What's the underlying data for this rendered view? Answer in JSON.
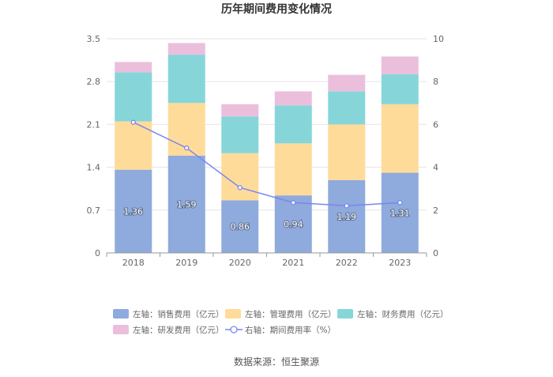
{
  "chart_data": {
    "type": "bar",
    "title": "历年期间费用变化情况",
    "categories": [
      "2018",
      "2019",
      "2020",
      "2021",
      "2022",
      "2023"
    ],
    "stacked": true,
    "left_axis": {
      "ylim": [
        0,
        3.5
      ],
      "ticks": [
        "0",
        "0.7",
        "1.4",
        "2.1",
        "2.8",
        "3.5"
      ]
    },
    "right_axis": {
      "ylim": [
        0,
        10
      ],
      "ticks": [
        "0",
        "2",
        "4",
        "6",
        "8",
        "10"
      ]
    },
    "series": [
      {
        "name": "左轴：销售费用（亿元）",
        "type": "bar",
        "axis": "left",
        "color": "#8faadc",
        "values": [
          1.36,
          1.59,
          0.86,
          0.94,
          1.19,
          1.31
        ],
        "labels": [
          "1.36",
          "1.59",
          "0.86",
          "0.94",
          "1.19",
          "1.31"
        ]
      },
      {
        "name": "左轴：管理费用（亿元）",
        "type": "bar",
        "axis": "left",
        "color": "#ffdb9a",
        "values": [
          0.79,
          0.86,
          0.77,
          0.85,
          0.91,
          1.12
        ]
      },
      {
        "name": "左轴：财务费用（亿元）",
        "type": "bar",
        "axis": "left",
        "color": "#86d6d9",
        "values": [
          0.8,
          0.79,
          0.6,
          0.62,
          0.54,
          0.49
        ]
      },
      {
        "name": "左轴：研发费用（亿元）",
        "type": "bar",
        "axis": "left",
        "color": "#ebbfdc",
        "values": [
          0.17,
          0.19,
          0.2,
          0.23,
          0.27,
          0.29
        ]
      },
      {
        "name": "右轴：期间费用率（%）",
        "type": "line",
        "axis": "right",
        "color": "#7b86ee",
        "values": [
          6.1,
          4.9,
          3.05,
          2.35,
          2.2,
          2.35
        ]
      }
    ],
    "grid": true,
    "legend_position": "bottom"
  },
  "source": "数据来源：恒生聚源"
}
